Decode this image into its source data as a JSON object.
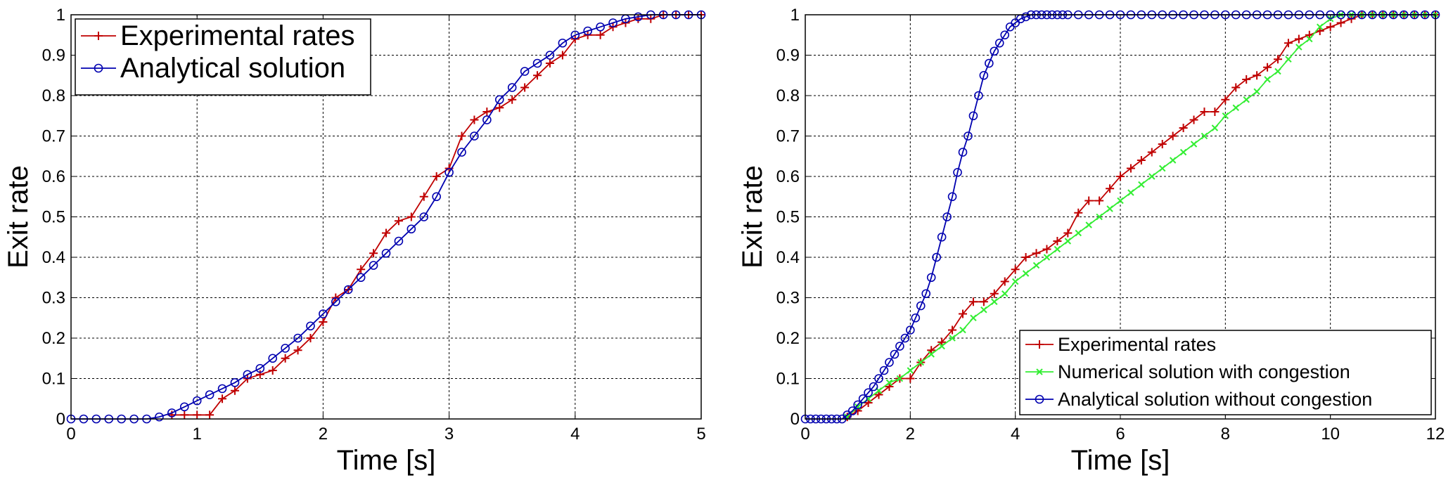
{
  "chart_data": [
    {
      "type": "line",
      "xlabel": "Time [s]",
      "ylabel": "Exit rate",
      "xlim": [
        0,
        5
      ],
      "ylim": [
        0,
        1
      ],
      "xticks": [
        "0",
        "1",
        "2",
        "3",
        "4",
        "5"
      ],
      "yticks": [
        "0",
        "0.1",
        "0.2",
        "0.3",
        "0.4",
        "0.5",
        "0.6",
        "0.7",
        "0.8",
        "0.9",
        "1"
      ],
      "grid": true,
      "legend_position": "top-left",
      "series": [
        {
          "name": "Experimental rates",
          "color": "#c00000",
          "marker": "plus",
          "x": [
            0.8,
            0.9,
            1.0,
            1.1,
            1.2,
            1.3,
            1.4,
            1.5,
            1.6,
            1.7,
            1.8,
            1.9,
            2.0,
            2.1,
            2.2,
            2.3,
            2.4,
            2.5,
            2.6,
            2.7,
            2.8,
            2.9,
            3.0,
            3.1,
            3.2,
            3.3,
            3.4,
            3.5,
            3.6,
            3.7,
            3.8,
            3.9,
            4.0,
            4.1,
            4.2,
            4.3,
            4.4,
            4.5,
            4.6,
            4.7,
            4.8,
            4.9,
            5.0
          ],
          "y": [
            0.01,
            0.01,
            0.01,
            0.01,
            0.05,
            0.07,
            0.1,
            0.11,
            0.12,
            0.15,
            0.17,
            0.2,
            0.24,
            0.3,
            0.32,
            0.37,
            0.41,
            0.46,
            0.49,
            0.5,
            0.55,
            0.6,
            0.62,
            0.7,
            0.74,
            0.76,
            0.77,
            0.79,
            0.82,
            0.85,
            0.88,
            0.9,
            0.94,
            0.95,
            0.95,
            0.97,
            0.98,
            0.99,
            0.99,
            1.0,
            1.0,
            1.0,
            1.0
          ]
        },
        {
          "name": "Analytical solution",
          "color": "#0000b0",
          "marker": "circle",
          "x": [
            0,
            0.1,
            0.2,
            0.3,
            0.4,
            0.5,
            0.6,
            0.7,
            0.8,
            0.9,
            1.0,
            1.1,
            1.2,
            1.3,
            1.4,
            1.5,
            1.6,
            1.7,
            1.8,
            1.9,
            2.0,
            2.1,
            2.2,
            2.3,
            2.4,
            2.5,
            2.6,
            2.7,
            2.8,
            2.9,
            3.0,
            3.1,
            3.2,
            3.3,
            3.4,
            3.5,
            3.6,
            3.7,
            3.8,
            3.9,
            4.0,
            4.1,
            4.2,
            4.3,
            4.4,
            4.5,
            4.6,
            4.7,
            4.8,
            4.9,
            5.0
          ],
          "y": [
            0,
            0,
            0,
            0,
            0,
            0,
            0,
            0.005,
            0.015,
            0.03,
            0.045,
            0.06,
            0.075,
            0.09,
            0.11,
            0.125,
            0.15,
            0.175,
            0.2,
            0.23,
            0.26,
            0.29,
            0.32,
            0.35,
            0.38,
            0.41,
            0.44,
            0.47,
            0.5,
            0.55,
            0.61,
            0.66,
            0.7,
            0.74,
            0.79,
            0.82,
            0.86,
            0.88,
            0.9,
            0.93,
            0.95,
            0.96,
            0.97,
            0.98,
            0.99,
            0.995,
            1.0,
            1.0,
            1.0,
            1.0,
            1.0
          ]
        }
      ]
    },
    {
      "type": "line",
      "xlabel": "Time [s]",
      "ylabel": "Exit rate",
      "xlim": [
        0,
        12
      ],
      "ylim": [
        0,
        1
      ],
      "xticks": [
        "0",
        "2",
        "4",
        "6",
        "8",
        "10",
        "12"
      ],
      "yticks": [
        "0",
        "0.1",
        "0.2",
        "0.3",
        "0.4",
        "0.5",
        "0.6",
        "0.7",
        "0.8",
        "0.9",
        "1"
      ],
      "grid": true,
      "legend_position": "bottom-right",
      "series": [
        {
          "name": "Experimental rates",
          "color": "#c00000",
          "marker": "plus",
          "x": [
            0.8,
            1.0,
            1.2,
            1.4,
            1.6,
            1.8,
            2.0,
            2.2,
            2.4,
            2.6,
            2.8,
            3.0,
            3.2,
            3.4,
            3.6,
            3.8,
            4.0,
            4.2,
            4.4,
            4.6,
            4.8,
            5.0,
            5.2,
            5.4,
            5.6,
            5.8,
            6.0,
            6.2,
            6.4,
            6.6,
            6.8,
            7.0,
            7.2,
            7.4,
            7.6,
            7.8,
            8.0,
            8.2,
            8.4,
            8.6,
            8.8,
            9.0,
            9.2,
            9.4,
            9.6,
            9.8,
            10.0,
            10.2,
            10.4,
            10.6,
            10.8,
            11.0,
            11.2,
            11.4,
            11.6,
            11.8,
            12.0
          ],
          "y": [
            0.005,
            0.02,
            0.04,
            0.06,
            0.08,
            0.1,
            0.1,
            0.14,
            0.17,
            0.19,
            0.22,
            0.26,
            0.29,
            0.29,
            0.31,
            0.34,
            0.37,
            0.4,
            0.41,
            0.42,
            0.44,
            0.46,
            0.51,
            0.54,
            0.54,
            0.57,
            0.6,
            0.62,
            0.64,
            0.66,
            0.68,
            0.7,
            0.72,
            0.74,
            0.76,
            0.76,
            0.79,
            0.82,
            0.84,
            0.85,
            0.87,
            0.89,
            0.93,
            0.94,
            0.95,
            0.96,
            0.97,
            0.98,
            0.99,
            1.0,
            1.0,
            1.0,
            1.0,
            1.0,
            1.0,
            1.0,
            1.0
          ]
        },
        {
          "name": "Numerical solution with congestion",
          "color": "#33ee33",
          "marker": "x",
          "x": [
            0.8,
            1.0,
            1.2,
            1.4,
            1.6,
            1.8,
            2.0,
            2.2,
            2.4,
            2.6,
            2.8,
            3.0,
            3.2,
            3.4,
            3.6,
            3.8,
            4.0,
            4.2,
            4.4,
            4.6,
            4.8,
            5.0,
            5.2,
            5.4,
            5.6,
            5.8,
            6.0,
            6.2,
            6.4,
            6.6,
            6.8,
            7.0,
            7.2,
            7.4,
            7.6,
            7.8,
            8.0,
            8.2,
            8.4,
            8.6,
            8.8,
            9.0,
            9.2,
            9.4,
            9.6,
            9.8,
            10.0,
            10.2,
            10.4,
            10.6,
            10.8,
            11.0,
            11.2,
            11.4,
            11.6,
            11.8,
            12.0
          ],
          "y": [
            0.005,
            0.03,
            0.05,
            0.07,
            0.09,
            0.1,
            0.12,
            0.14,
            0.16,
            0.18,
            0.2,
            0.22,
            0.25,
            0.27,
            0.29,
            0.31,
            0.34,
            0.36,
            0.38,
            0.4,
            0.42,
            0.44,
            0.46,
            0.48,
            0.5,
            0.52,
            0.54,
            0.56,
            0.58,
            0.6,
            0.62,
            0.64,
            0.66,
            0.68,
            0.7,
            0.72,
            0.75,
            0.77,
            0.79,
            0.81,
            0.84,
            0.86,
            0.89,
            0.92,
            0.94,
            0.97,
            0.99,
            1.0,
            1.0,
            1.0,
            1.0,
            1.0,
            1.0,
            1.0,
            1.0,
            1.0,
            1.0
          ]
        },
        {
          "name": "Analytical solution without congestion",
          "color": "#0000b0",
          "marker": "circle",
          "x": [
            0,
            0.1,
            0.2,
            0.3,
            0.4,
            0.5,
            0.6,
            0.7,
            0.8,
            0.9,
            1.0,
            1.1,
            1.2,
            1.3,
            1.4,
            1.5,
            1.6,
            1.7,
            1.8,
            1.9,
            2.0,
            2.1,
            2.2,
            2.3,
            2.4,
            2.5,
            2.6,
            2.7,
            2.8,
            2.9,
            3.0,
            3.1,
            3.2,
            3.3,
            3.4,
            3.5,
            3.6,
            3.7,
            3.8,
            3.9,
            4.0,
            4.1,
            4.2,
            4.3,
            4.4,
            4.5,
            4.6,
            4.7,
            4.8,
            4.9,
            5.0,
            5.2,
            5.4,
            5.6,
            5.8,
            6.0,
            6.2,
            6.4,
            6.6,
            6.8,
            7.0,
            7.2,
            7.4,
            7.6,
            7.8,
            8.0,
            8.2,
            8.4,
            8.6,
            8.8,
            9.0,
            9.2,
            9.4,
            9.6,
            9.8,
            10.0,
            10.2,
            10.4,
            10.6,
            10.8,
            11.0,
            11.2,
            11.4,
            11.6,
            11.8,
            12.0
          ],
          "y": [
            0,
            0,
            0,
            0,
            0,
            0,
            0,
            0,
            0.01,
            0.02,
            0.035,
            0.05,
            0.065,
            0.08,
            0.1,
            0.12,
            0.14,
            0.16,
            0.18,
            0.2,
            0.22,
            0.25,
            0.28,
            0.31,
            0.35,
            0.4,
            0.45,
            0.5,
            0.55,
            0.61,
            0.66,
            0.7,
            0.75,
            0.8,
            0.85,
            0.88,
            0.91,
            0.93,
            0.95,
            0.97,
            0.98,
            0.99,
            0.995,
            1.0,
            1.0,
            1.0,
            1.0,
            1.0,
            1.0,
            1.0,
            1.0,
            1.0,
            1.0,
            1.0,
            1.0,
            1.0,
            1.0,
            1.0,
            1.0,
            1.0,
            1.0,
            1.0,
            1.0,
            1.0,
            1.0,
            1.0,
            1.0,
            1.0,
            1.0,
            1.0,
            1.0,
            1.0,
            1.0,
            1.0,
            1.0,
            1.0,
            1.0,
            1.0,
            1.0,
            1.0,
            1.0,
            1.0,
            1.0,
            1.0,
            1.0,
            1.0
          ]
        }
      ]
    }
  ]
}
